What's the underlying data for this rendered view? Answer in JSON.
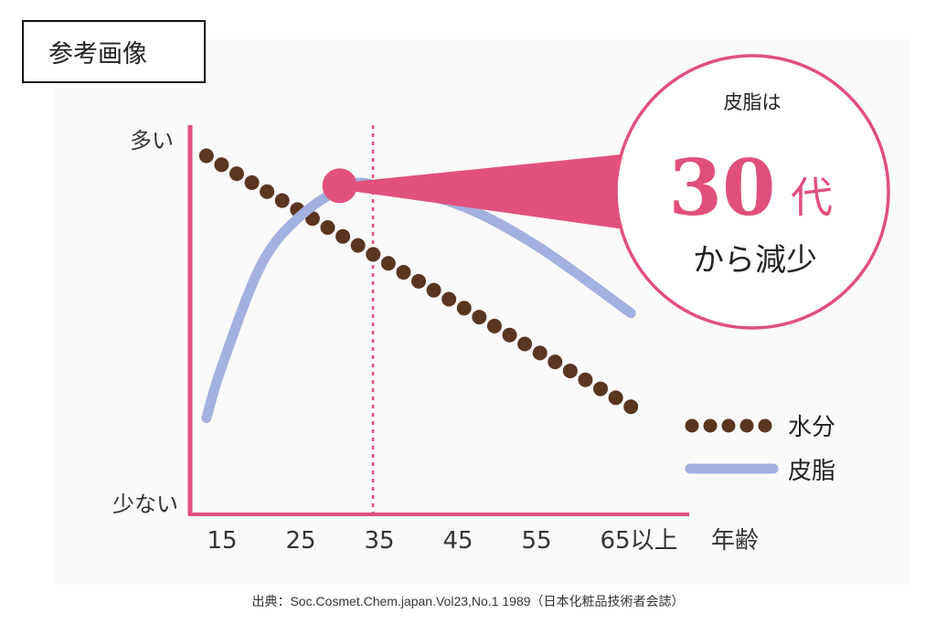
{
  "reference_label": "参考画像",
  "source_note": "出典：Soc.Cosmet.Chem.japan.Vol23,No.1 1989（日本化粧品技術者会誌）",
  "callout": {
    "line1": "皮脂は",
    "number": "30",
    "unit": "代",
    "line3": "から減少"
  },
  "colors": {
    "accent": "#e0507c",
    "sebum": "#a3b1e0",
    "moisture": "#5a3520"
  },
  "chart_data": {
    "type": "line",
    "title": "",
    "xlabel": "年齢",
    "ylabel": "",
    "y_top_label": "多い",
    "y_bottom_label": "少ない",
    "x_ticks": [
      15,
      25,
      35,
      45,
      55,
      65
    ],
    "x_tick_labels": [
      "15",
      "25",
      "35",
      "45",
      "55",
      "65以上"
    ],
    "xlim": [
      10,
      72
    ],
    "ylim": [
      0,
      100
    ],
    "grid": false,
    "legend_position": "bottom-right",
    "reference_line_x": 35,
    "highlight_point": {
      "x": 31,
      "y": 87
    },
    "series": [
      {
        "name": "水分",
        "style": "dotted",
        "x": [
          13,
          67
        ],
        "y": [
          95,
          28
        ]
      },
      {
        "name": "皮脂",
        "style": "solid",
        "x": [
          13,
          15,
          20,
          25,
          31,
          35,
          45,
          55,
          67
        ],
        "y": [
          25,
          39,
          66,
          79,
          87,
          87,
          82,
          71,
          53
        ]
      }
    ]
  }
}
